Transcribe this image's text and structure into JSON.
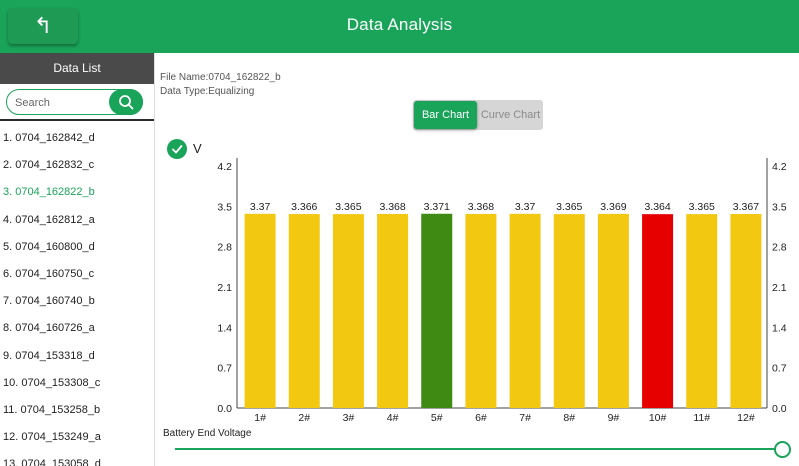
{
  "header": {
    "title": "Data Analysis",
    "back_icon": "back-arrow-icon"
  },
  "sidebar": {
    "title": "Data List",
    "search": {
      "placeholder": "Search",
      "icon": "search-icon"
    },
    "items": [
      "1. 0704_162842_d",
      "2. 0704_162832_c",
      "3. 0704_162822_b",
      "4. 0704_162812_a",
      "5. 0704_160800_d",
      "6. 0704_160750_c",
      "7. 0704_160740_b",
      "8. 0704_160726_a",
      "9. 0704_153318_d",
      "10. 0704_153308_c",
      "11. 0704_153258_b",
      "12. 0704_153249_a",
      "13. 0704_153058_d"
    ],
    "selected_index": 2
  },
  "info": {
    "file_name": "File Name:0704_162822_b",
    "data_type": "Data Type:Equalizing"
  },
  "tabs": {
    "bar_chart": "Bar Chart",
    "curve_chart": "Curve Chart",
    "active": "bar_chart"
  },
  "series_toggle": {
    "label": "V",
    "checked": true
  },
  "chart_data": {
    "type": "bar",
    "categories": [
      "1#",
      "2#",
      "3#",
      "4#",
      "5#",
      "6#",
      "7#",
      "8#",
      "9#",
      "10#",
      "11#",
      "12#"
    ],
    "values": [
      3.37,
      3.366,
      3.365,
      3.368,
      3.371,
      3.368,
      3.37,
      3.365,
      3.369,
      3.364,
      3.365,
      3.367
    ],
    "value_labels": [
      "3.37",
      "3.366",
      "3.365",
      "3.368",
      "3.371",
      "3.368",
      "3.37",
      "3.365",
      "3.369",
      "3.364",
      "3.365",
      "3.367"
    ],
    "yticks": [
      "0.0",
      "0.7",
      "1.4",
      "2.1",
      "2.8",
      "3.5",
      "4.2"
    ],
    "ylim": [
      0,
      4.2
    ],
    "bar_colors": [
      "#f2c811",
      "#f2c811",
      "#f2c811",
      "#f2c811",
      "#3f8a12",
      "#f2c811",
      "#f2c811",
      "#f2c811",
      "#f2c811",
      "#e60000",
      "#f2c811",
      "#f2c811"
    ],
    "dual_y_axis": true,
    "grid": false,
    "xlabel": "",
    "ylabel": ""
  },
  "footer": {
    "label": "Battery End Voltage",
    "slider_value": 1.0
  },
  "colors": {
    "accent": "#1aa45a",
    "max_bar": "#3f8a12",
    "min_bar": "#e60000",
    "normal_bar": "#f2c811"
  }
}
